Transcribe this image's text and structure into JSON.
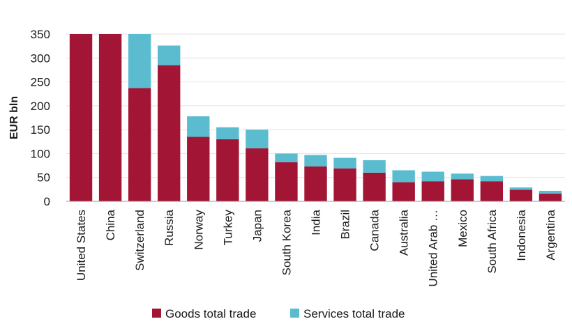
{
  "chart_data": {
    "type": "bar",
    "stacked": true,
    "ylabel": "EUR bln",
    "xlabel": "",
    "ylim": [
      0,
      350
    ],
    "yticks": [
      0,
      50,
      100,
      150,
      200,
      250,
      300,
      350
    ],
    "grid": true,
    "legend_position": "bottom",
    "categories": [
      "United States",
      "China",
      "Switzerland",
      "Russia",
      "Norway",
      "Turkey",
      "Japan",
      "South Korea",
      "India",
      "Brazil",
      "Canada",
      "Australia",
      "United Arab …",
      "Mexico",
      "South Africa",
      "Indonesia",
      "Argentina"
    ],
    "series": [
      {
        "name": "Goods total trade",
        "color": "#a31535",
        "values": [
          350,
          350,
          237,
          285,
          135,
          130,
          111,
          82,
          73,
          69,
          60,
          40,
          42,
          46,
          42,
          24,
          16
        ]
      },
      {
        "name": "Services total trade",
        "color": "#5bbccf",
        "values": [
          0,
          0,
          113,
          41,
          43,
          25,
          39,
          18,
          24,
          22,
          26,
          25,
          20,
          12,
          11,
          5,
          6
        ]
      }
    ]
  }
}
